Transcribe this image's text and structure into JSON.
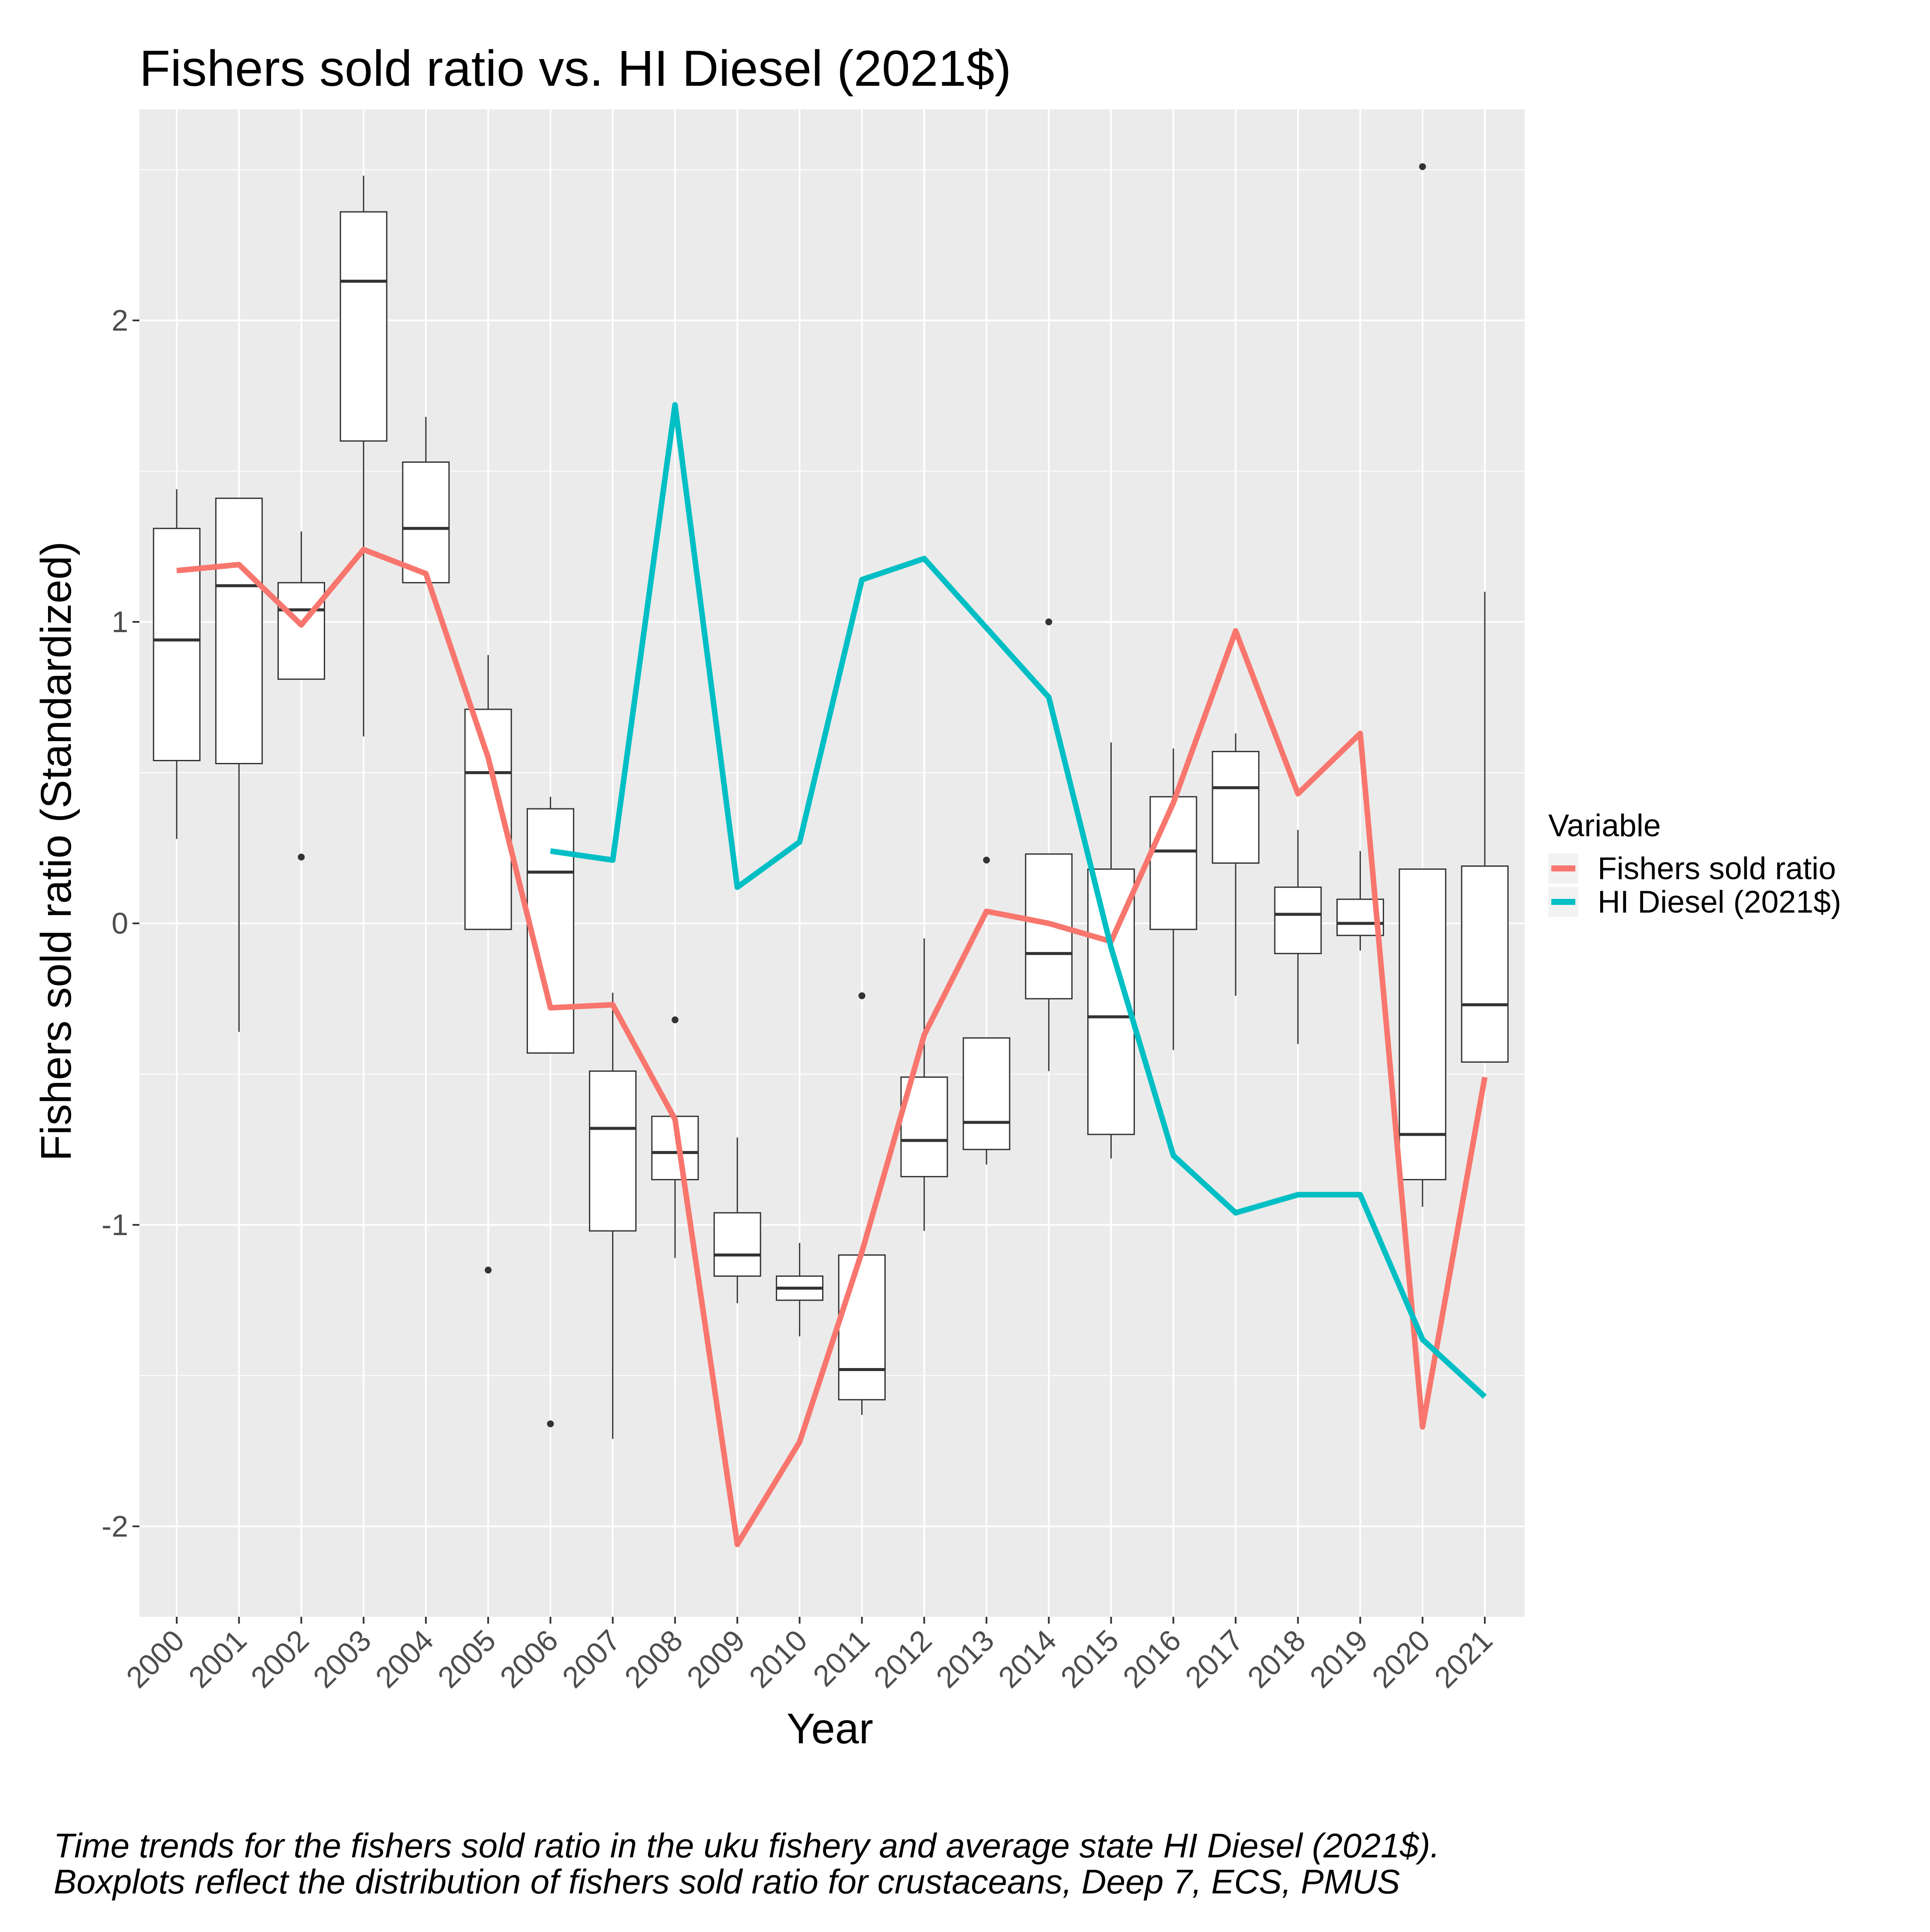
{
  "chart_data": {
    "type": "box+line",
    "title": "Fishers sold ratio vs. HI Diesel (2021$)",
    "xlabel": "Year",
    "ylabel": "Fishers sold ratio (Standardized)",
    "ylim": [
      -2.3,
      2.7
    ],
    "y_ticks": [
      -2,
      -1,
      0,
      1,
      2
    ],
    "y_tick_labels": [
      "-2",
      "-1",
      "0",
      "1",
      "2"
    ],
    "grid": true,
    "categories": [
      "2000",
      "2001",
      "2002",
      "2003",
      "2004",
      "2005",
      "2006",
      "2007",
      "2008",
      "2009",
      "2010",
      "2011",
      "2012",
      "2013",
      "2014",
      "2015",
      "2016",
      "2017",
      "2018",
      "2019",
      "2020",
      "2021"
    ],
    "boxplots": [
      {
        "year": "2000",
        "low": 0.28,
        "q1": 0.54,
        "median": 0.94,
        "q3": 1.31,
        "high": 1.44,
        "outliers": []
      },
      {
        "year": "2001",
        "low": -0.36,
        "q1": 0.53,
        "median": 1.12,
        "q3": 1.41,
        "high": 1.41,
        "outliers": []
      },
      {
        "year": "2002",
        "low": 0.81,
        "q1": 0.81,
        "median": 1.04,
        "q3": 1.13,
        "high": 1.3,
        "outliers": [
          0.22
        ]
      },
      {
        "year": "2003",
        "low": 0.62,
        "q1": 1.6,
        "median": 2.13,
        "q3": 2.36,
        "high": 2.48,
        "outliers": []
      },
      {
        "year": "2004",
        "low": 1.13,
        "q1": 1.13,
        "median": 1.31,
        "q3": 1.53,
        "high": 1.68,
        "outliers": []
      },
      {
        "year": "2005",
        "low": -0.02,
        "q1": -0.02,
        "median": 0.5,
        "q3": 0.71,
        "high": 0.89,
        "outliers": [
          -1.15
        ]
      },
      {
        "year": "2006",
        "low": -0.43,
        "q1": -0.43,
        "median": 0.17,
        "q3": 0.38,
        "high": 0.42,
        "outliers": [
          -1.66
        ]
      },
      {
        "year": "2007",
        "low": -1.71,
        "q1": -1.02,
        "median": -0.68,
        "q3": -0.49,
        "high": -0.23,
        "outliers": []
      },
      {
        "year": "2008",
        "low": -1.11,
        "q1": -0.85,
        "median": -0.76,
        "q3": -0.64,
        "high": -0.64,
        "outliers": [
          -0.32
        ]
      },
      {
        "year": "2009",
        "low": -1.26,
        "q1": -1.17,
        "median": -1.1,
        "q3": -0.96,
        "high": -0.71,
        "outliers": []
      },
      {
        "year": "2010",
        "low": -1.37,
        "q1": -1.25,
        "median": -1.21,
        "q3": -1.17,
        "high": -1.06,
        "outliers": []
      },
      {
        "year": "2011",
        "low": -1.63,
        "q1": -1.58,
        "median": -1.48,
        "q3": -1.1,
        "high": -1.1,
        "outliers": [
          -0.24
        ]
      },
      {
        "year": "2012",
        "low": -1.02,
        "q1": -0.84,
        "median": -0.72,
        "q3": -0.51,
        "high": -0.05,
        "outliers": []
      },
      {
        "year": "2013",
        "low": -0.8,
        "q1": -0.75,
        "median": -0.66,
        "q3": -0.38,
        "high": -0.38,
        "outliers": [
          0.21
        ]
      },
      {
        "year": "2014",
        "low": -0.49,
        "q1": -0.25,
        "median": -0.1,
        "q3": 0.23,
        "high": 0.23,
        "outliers": [
          1.0
        ]
      },
      {
        "year": "2015",
        "low": -0.78,
        "q1": -0.7,
        "median": -0.31,
        "q3": 0.18,
        "high": 0.6,
        "outliers": []
      },
      {
        "year": "2016",
        "low": -0.42,
        "q1": -0.02,
        "median": 0.24,
        "q3": 0.42,
        "high": 0.58,
        "outliers": []
      },
      {
        "year": "2017",
        "low": -0.24,
        "q1": 0.2,
        "median": 0.45,
        "q3": 0.57,
        "high": 0.63,
        "outliers": []
      },
      {
        "year": "2018",
        "low": -0.4,
        "q1": -0.1,
        "median": 0.03,
        "q3": 0.12,
        "high": 0.31,
        "outliers": []
      },
      {
        "year": "2019",
        "low": -0.09,
        "q1": -0.04,
        "median": 0.0,
        "q3": 0.08,
        "high": 0.24,
        "outliers": []
      },
      {
        "year": "2020",
        "low": -0.94,
        "q1": -0.85,
        "median": -0.7,
        "q3": 0.18,
        "high": 0.18,
        "outliers": [
          2.51
        ]
      },
      {
        "year": "2021",
        "low": -0.46,
        "q1": -0.46,
        "median": -0.27,
        "q3": 0.19,
        "high": 1.1,
        "outliers": []
      }
    ],
    "series": [
      {
        "name": "Fishers sold ratio",
        "color": "#F8766D",
        "x": [
          "2000",
          "2001",
          "2002",
          "2003",
          "2004",
          "2005",
          "2006",
          "2007",
          "2008",
          "2009",
          "2010",
          "2011",
          "2012",
          "2013",
          "2014",
          "2015",
          "2016",
          "2017",
          "2018",
          "2019",
          "2020",
          "2021"
        ],
        "values": [
          1.17,
          1.19,
          0.99,
          1.24,
          1.16,
          0.55,
          -0.28,
          -0.27,
          -0.65,
          -2.06,
          -1.72,
          -1.09,
          -0.37,
          0.04,
          0.0,
          -0.06,
          0.4,
          0.97,
          0.43,
          0.63,
          -1.67,
          -0.51
        ]
      },
      {
        "name": "HI Diesel (2021$)",
        "color": "#00BFC4",
        "x": [
          "2006",
          "2007",
          "2008",
          "2009",
          "2010",
          "2011",
          "2012",
          "2013",
          "2014",
          "2015",
          "2016",
          "2017",
          "2018",
          "2019",
          "2020",
          "2021"
        ],
        "values": [
          0.24,
          0.21,
          1.72,
          0.12,
          0.27,
          1.14,
          1.21,
          0.98,
          0.75,
          -0.08,
          -0.77,
          -0.96,
          -0.9,
          -0.9,
          -1.38,
          -1.57
        ]
      }
    ],
    "legend": {
      "title": "Variable",
      "placement": "right",
      "entries": [
        "Fishers sold ratio",
        "HI Diesel (2021$)"
      ]
    },
    "caption": [
      "Time trends for the fishers sold ratio in the uku fishery and average state HI Diesel (2021$).",
      " Boxplots reflect the distribution of fishers sold ratio for crustaceans, Deep 7, ECS, PMUS"
    ]
  }
}
